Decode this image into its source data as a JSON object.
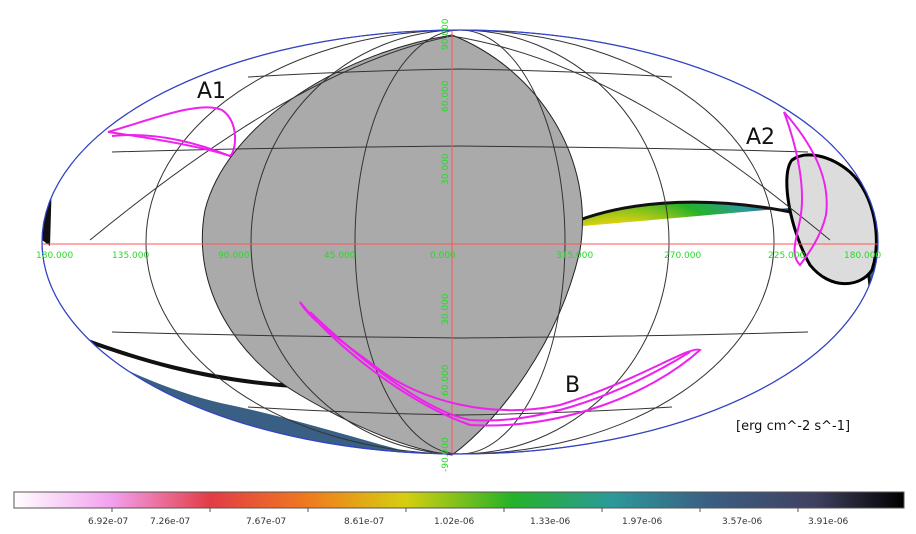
{
  "map": {
    "projection": "Aitoff-Hammer (all-sky)",
    "longitude_ticks": [
      "180.000",
      "135.000",
      "90.000",
      "45.000",
      "0.000",
      "315.000",
      "270.000",
      "225.000",
      "180.000"
    ],
    "latitude_ticks": [
      "90.000",
      "60.000",
      "30.000",
      "30.000",
      "60.000",
      "-90.000"
    ],
    "regions": [
      {
        "id": "A1",
        "label": "A1",
        "color": "#ee22ee"
      },
      {
        "id": "A2",
        "label": "A2",
        "color": "#ee22ee"
      },
      {
        "id": "B",
        "label": "B",
        "color": "#ee22ee"
      }
    ],
    "unit_label": "[erg cm^-2 s^-1]",
    "colors": {
      "occulted": "#aaaaaa",
      "occulted_light": "#dcdcdc",
      "grid": "#333333",
      "axis_lines": "#ff5555",
      "outline": "#3344cc",
      "contour": "#ee22ee",
      "tick_text": "#22dd22"
    }
  },
  "colorbar": {
    "labels": [
      "6.92e-07",
      "7.26e-07",
      "7.67e-07",
      "8.61e-07",
      "1.02e-06",
      "1.33e-06",
      "1.97e-06",
      "3.57e-06",
      "3.91e-06"
    ],
    "colors": [
      "#ffffff",
      "#f2a0ee",
      "#e23c46",
      "#f07a1e",
      "#d6cf10",
      "#24b228",
      "#2c9a9a",
      "#3a5f84",
      "#000000"
    ]
  }
}
